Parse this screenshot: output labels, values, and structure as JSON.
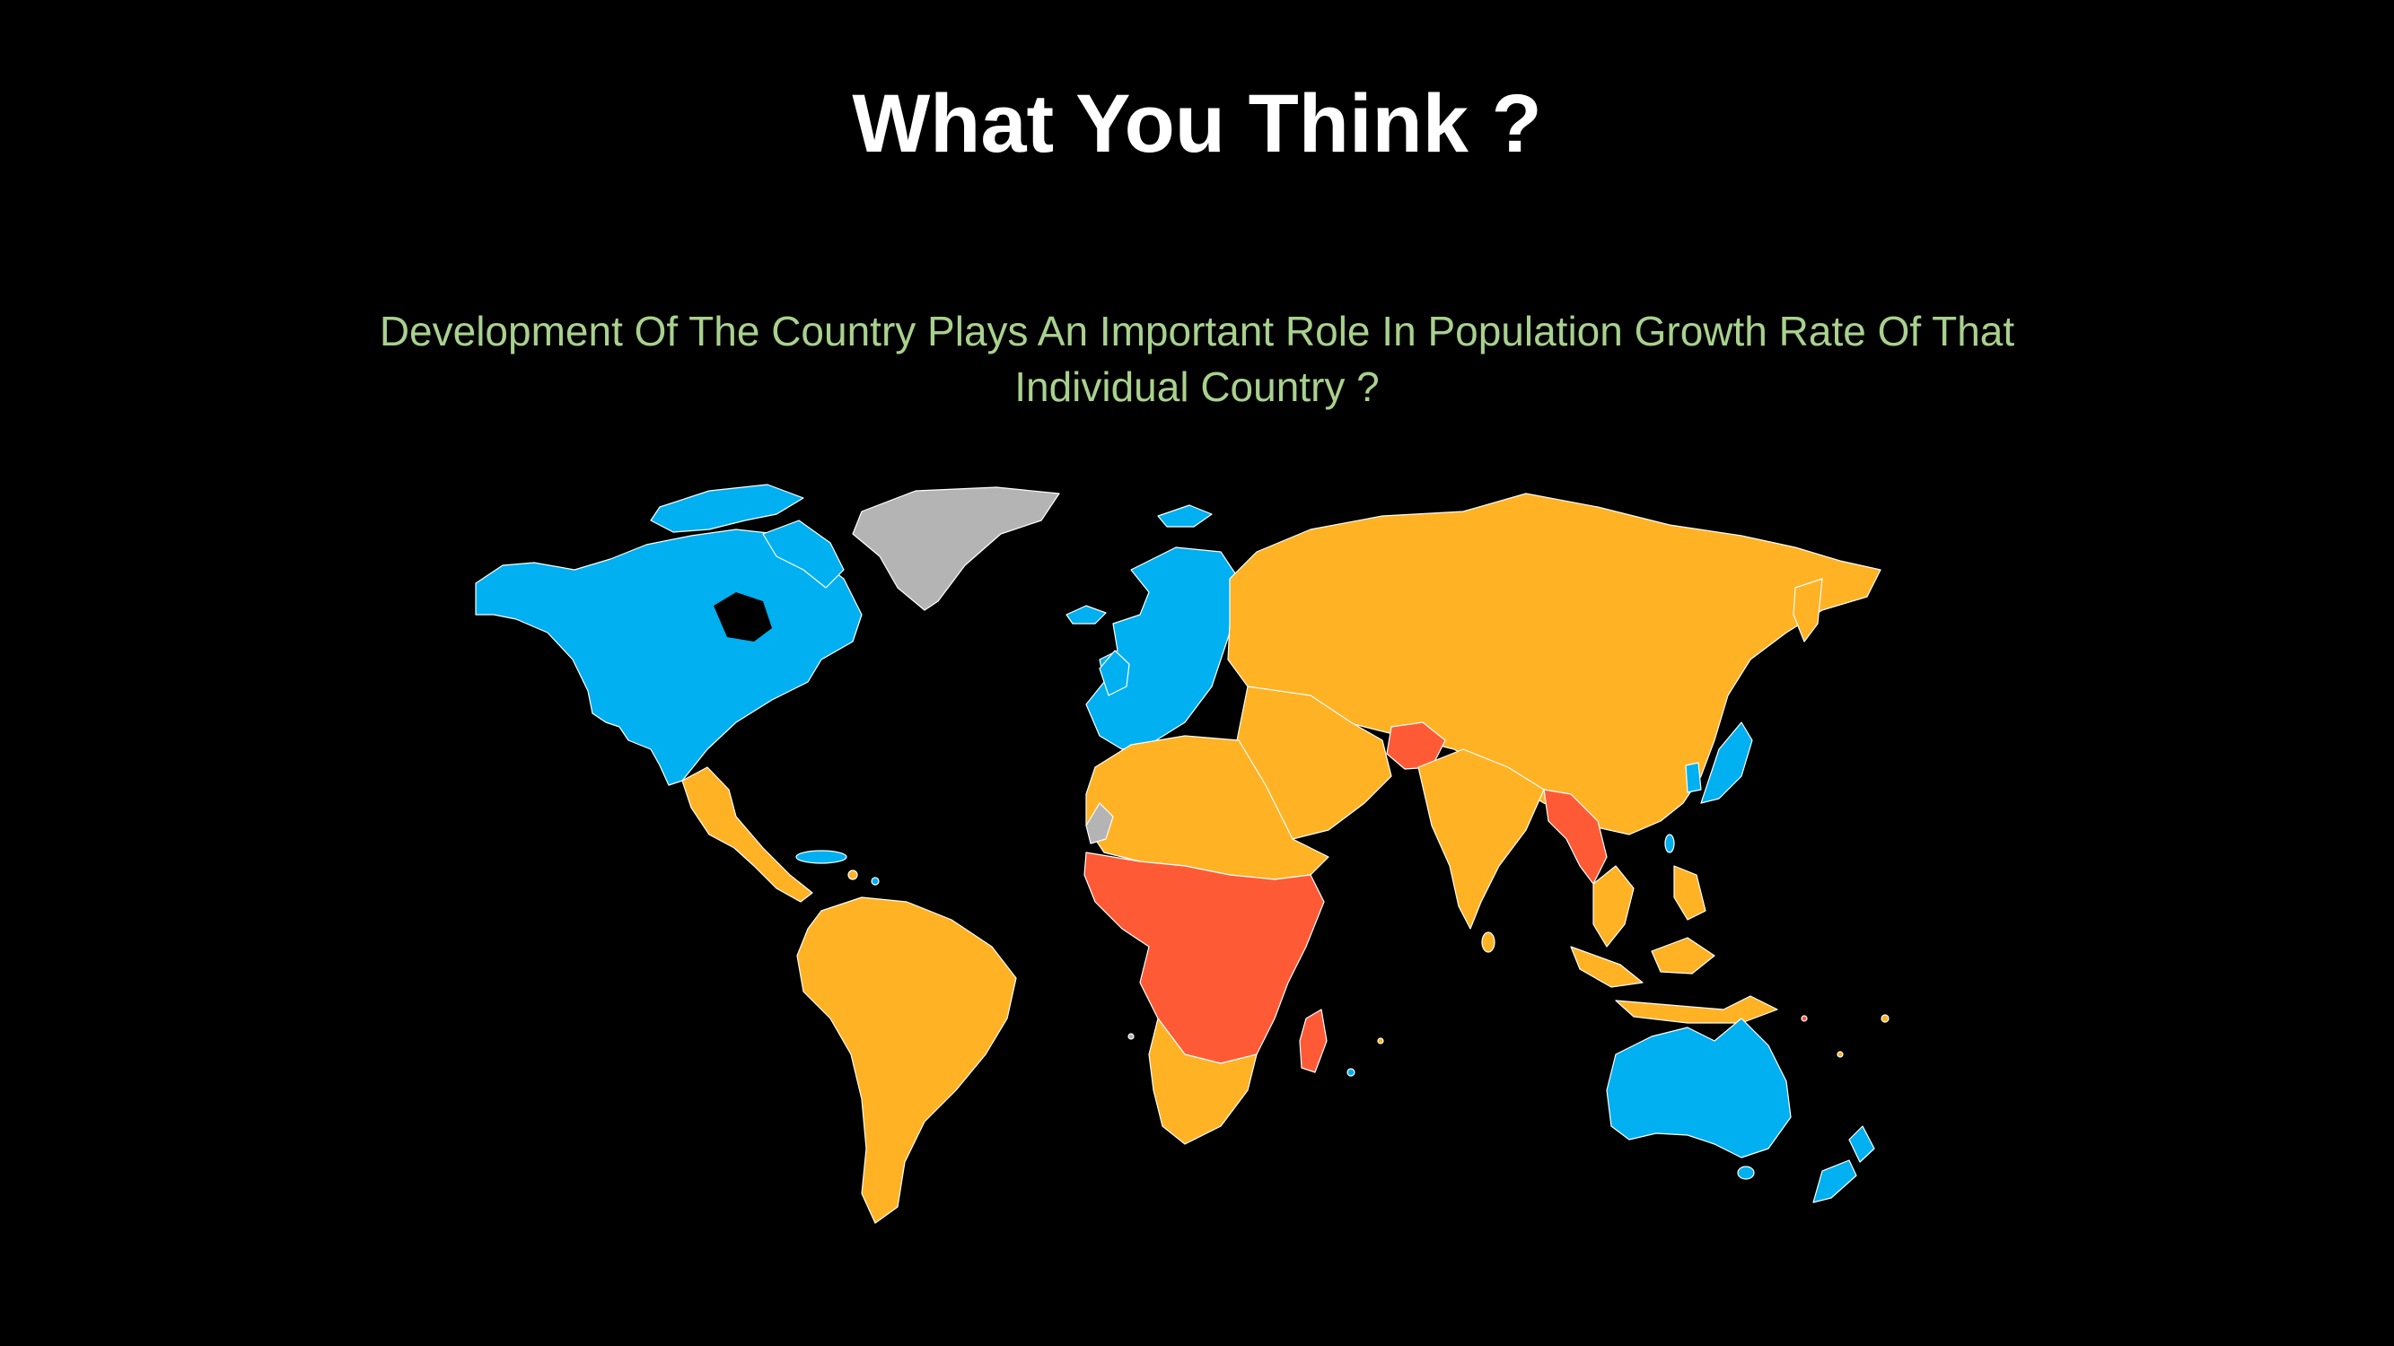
{
  "slide": {
    "title": "What You Think ?",
    "subtitle_lines": [
      "Development Of The Country Plays An Important Role In Population Growth Rate  Of That",
      "Individual Country ?"
    ]
  },
  "map": {
    "type": "choropleth-world",
    "colors": {
      "background": "#000000",
      "blue": "#00b0f0",
      "orange": "#ffb224",
      "red": "#ff5a36",
      "gray": "#b4b4b4",
      "borders": "#ffffff"
    },
    "regions": [
      {
        "region": "North America",
        "category": "blue"
      },
      {
        "region": "Greenland",
        "category": "gray"
      },
      {
        "region": "Western Europe",
        "category": "blue"
      },
      {
        "region": "Iceland",
        "category": "blue"
      },
      {
        "region": "Central America",
        "category": "orange"
      },
      {
        "region": "South America",
        "category": "orange"
      },
      {
        "region": "North Africa",
        "category": "orange"
      },
      {
        "region": "Western Sahara",
        "category": "gray"
      },
      {
        "region": "Central Africa",
        "category": "red"
      },
      {
        "region": "Southern Africa",
        "category": "orange"
      },
      {
        "region": "Madagascar",
        "category": "red"
      },
      {
        "region": "Russia & Central Asia",
        "category": "orange"
      },
      {
        "region": "Middle East",
        "category": "orange"
      },
      {
        "region": "Afghanistan",
        "category": "red"
      },
      {
        "region": "South Asia",
        "category": "orange"
      },
      {
        "region": "China",
        "category": "orange"
      },
      {
        "region": "Myanmar & Laos",
        "category": "red"
      },
      {
        "region": "Southeast Asia",
        "category": "orange"
      },
      {
        "region": "Japan & South Korea",
        "category": "blue"
      },
      {
        "region": "Australia",
        "category": "blue"
      },
      {
        "region": "New Zealand",
        "category": "blue"
      }
    ]
  }
}
